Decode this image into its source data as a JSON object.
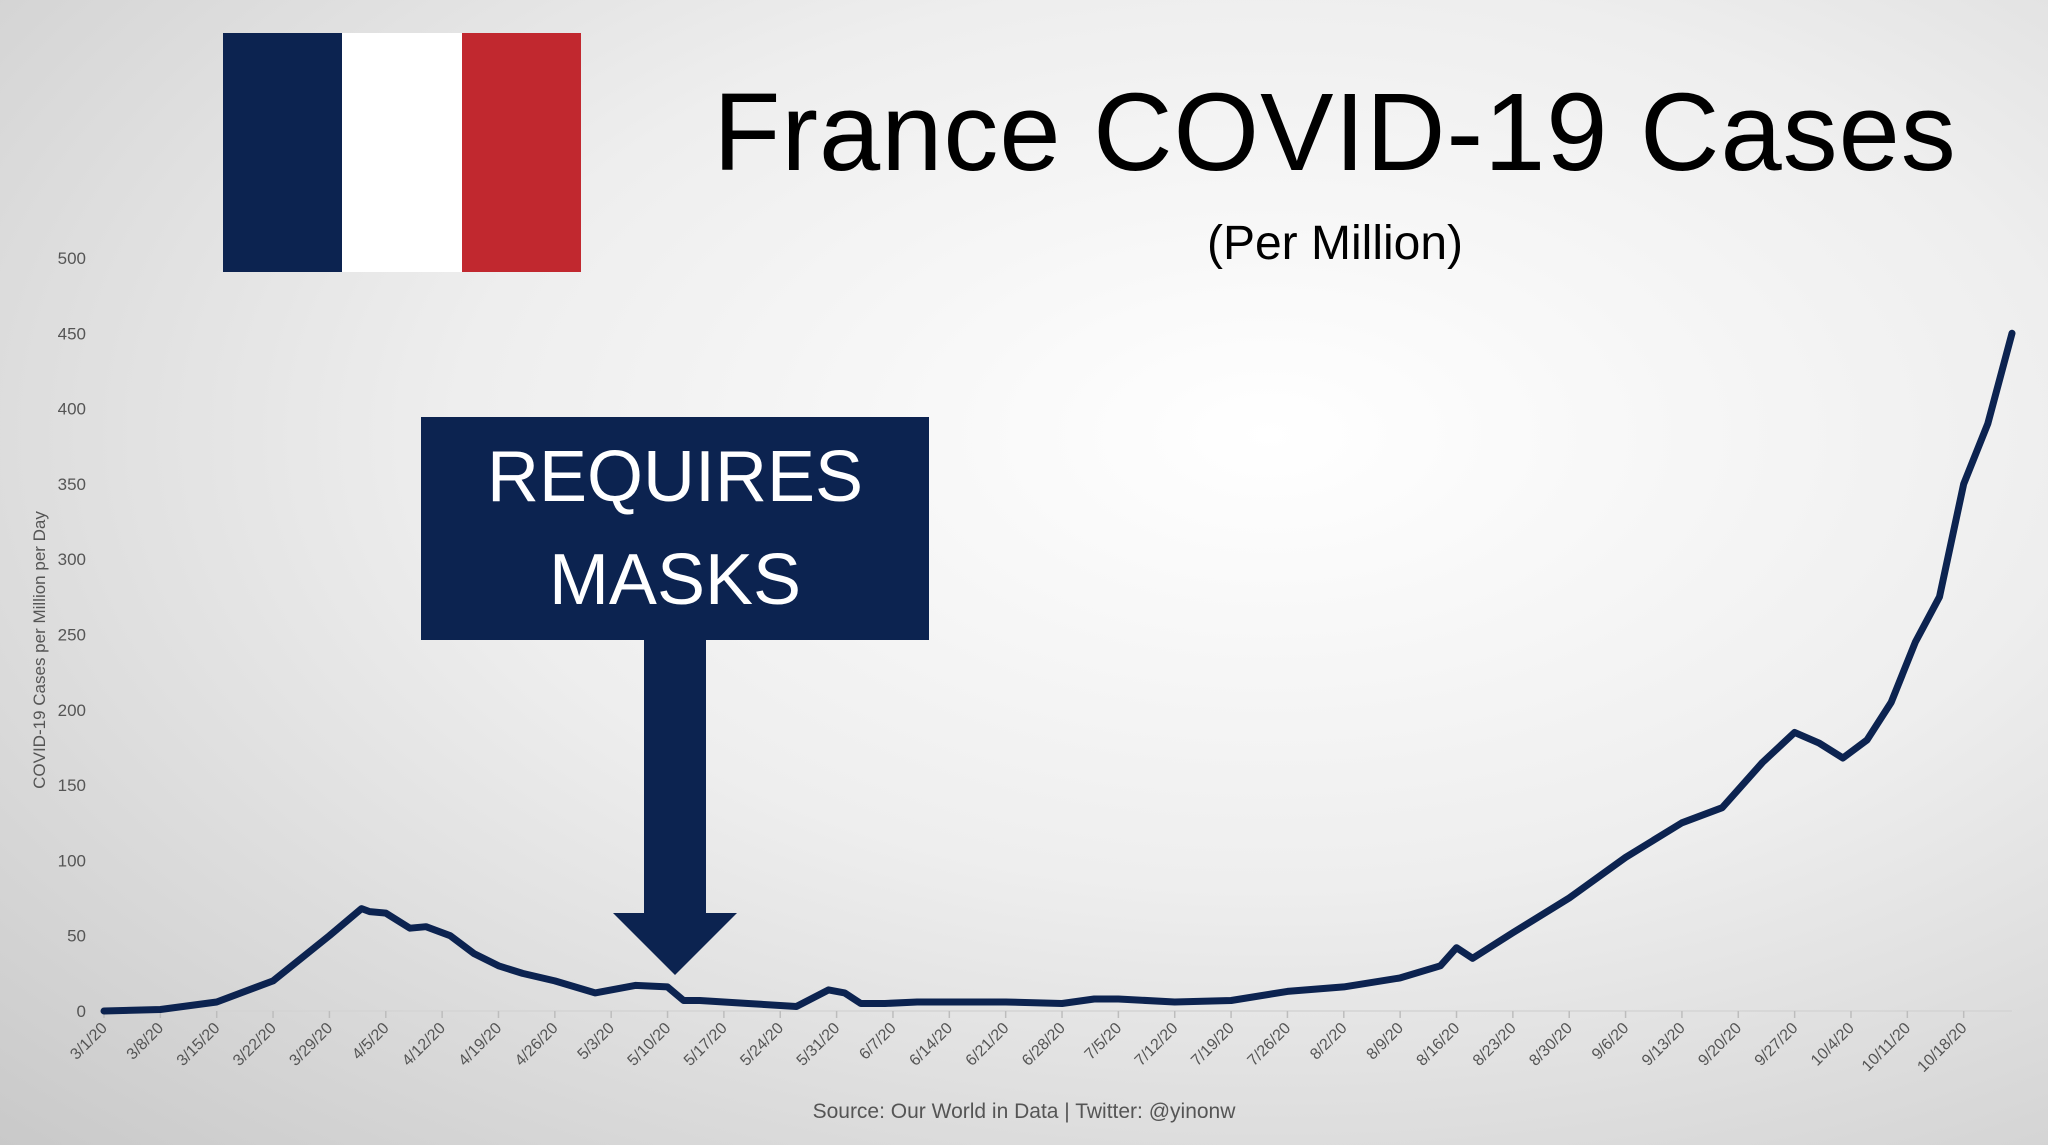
{
  "flag": {
    "colors": [
      "#0c2350",
      "#ffffff",
      "#c1282f"
    ]
  },
  "title": "France COVID-19 Cases",
  "subtitle": "(Per Million)",
  "callout": {
    "line1": "REQUIRES",
    "line2": "MASKS",
    "color": "#0c2350"
  },
  "source": "Source: Our World in Data | Twitter: @yinonw",
  "chart_data": {
    "type": "line",
    "ylabel": "COVID-19 Cases per Million per Day",
    "xlabel": "",
    "ylim": [
      0,
      500
    ],
    "yticks": [
      0,
      50,
      100,
      150,
      200,
      250,
      300,
      350,
      400,
      450,
      500
    ],
    "grid": false,
    "line_color": "#0c2350",
    "xticks": [
      "3/1/20",
      "3/8/20",
      "3/15/20",
      "3/22/20",
      "3/29/20",
      "4/5/20",
      "4/12/20",
      "4/19/20",
      "4/26/20",
      "5/3/20",
      "5/10/20",
      "5/17/20",
      "5/24/20",
      "5/31/20",
      "6/7/20",
      "6/14/20",
      "6/21/20",
      "6/28/20",
      "7/5/20",
      "7/12/20",
      "7/19/20",
      "7/26/20",
      "8/2/20",
      "8/9/20",
      "8/16/20",
      "8/23/20",
      "8/30/20",
      "9/6/20",
      "9/13/20",
      "9/20/20",
      "9/27/20",
      "10/4/20",
      "10/11/20",
      "10/18/20"
    ],
    "series": [
      {
        "x": [
          "3/1/20",
          "3/8/20",
          "3/15/20",
          "3/22/20",
          "3/29/20",
          "4/2/20",
          "4/3/20",
          "4/5/20",
          "4/8/20",
          "4/10/20",
          "4/13/20",
          "4/16/20",
          "4/19/20",
          "4/22/20",
          "4/26/20",
          "5/1/20",
          "5/6/20",
          "5/10/20",
          "5/12/20",
          "5/14/20",
          "5/20/20",
          "5/26/20",
          "5/30/20",
          "6/1/20",
          "6/3/20",
          "6/6/20",
          "6/10/20",
          "6/14/20",
          "6/21/20",
          "6/28/20",
          "7/2/20",
          "7/5/20",
          "7/12/20",
          "7/19/20",
          "7/26/20",
          "8/2/20",
          "8/9/20",
          "8/14/20",
          "8/16/20",
          "8/18/20",
          "8/23/20",
          "8/30/20",
          "9/6/20",
          "9/13/20",
          "9/18/20",
          "9/23/20",
          "9/27/20",
          "9/30/20",
          "10/3/20",
          "10/6/20",
          "10/9/20",
          "10/12/20",
          "10/15/20",
          "10/18/20",
          "10/21/20",
          "10/24/20"
        ],
        "y": [
          0,
          1,
          6,
          20,
          50,
          68,
          66,
          65,
          55,
          56,
          50,
          38,
          30,
          25,
          20,
          12,
          17,
          16,
          7,
          7,
          5,
          3,
          14,
          12,
          5,
          5,
          6,
          6,
          6,
          5,
          8,
          8,
          6,
          7,
          13,
          16,
          22,
          30,
          42,
          35,
          52,
          75,
          102,
          125,
          135,
          165,
          185,
          178,
          168,
          180,
          205,
          245,
          275,
          350,
          390,
          450
        ]
      }
    ]
  }
}
